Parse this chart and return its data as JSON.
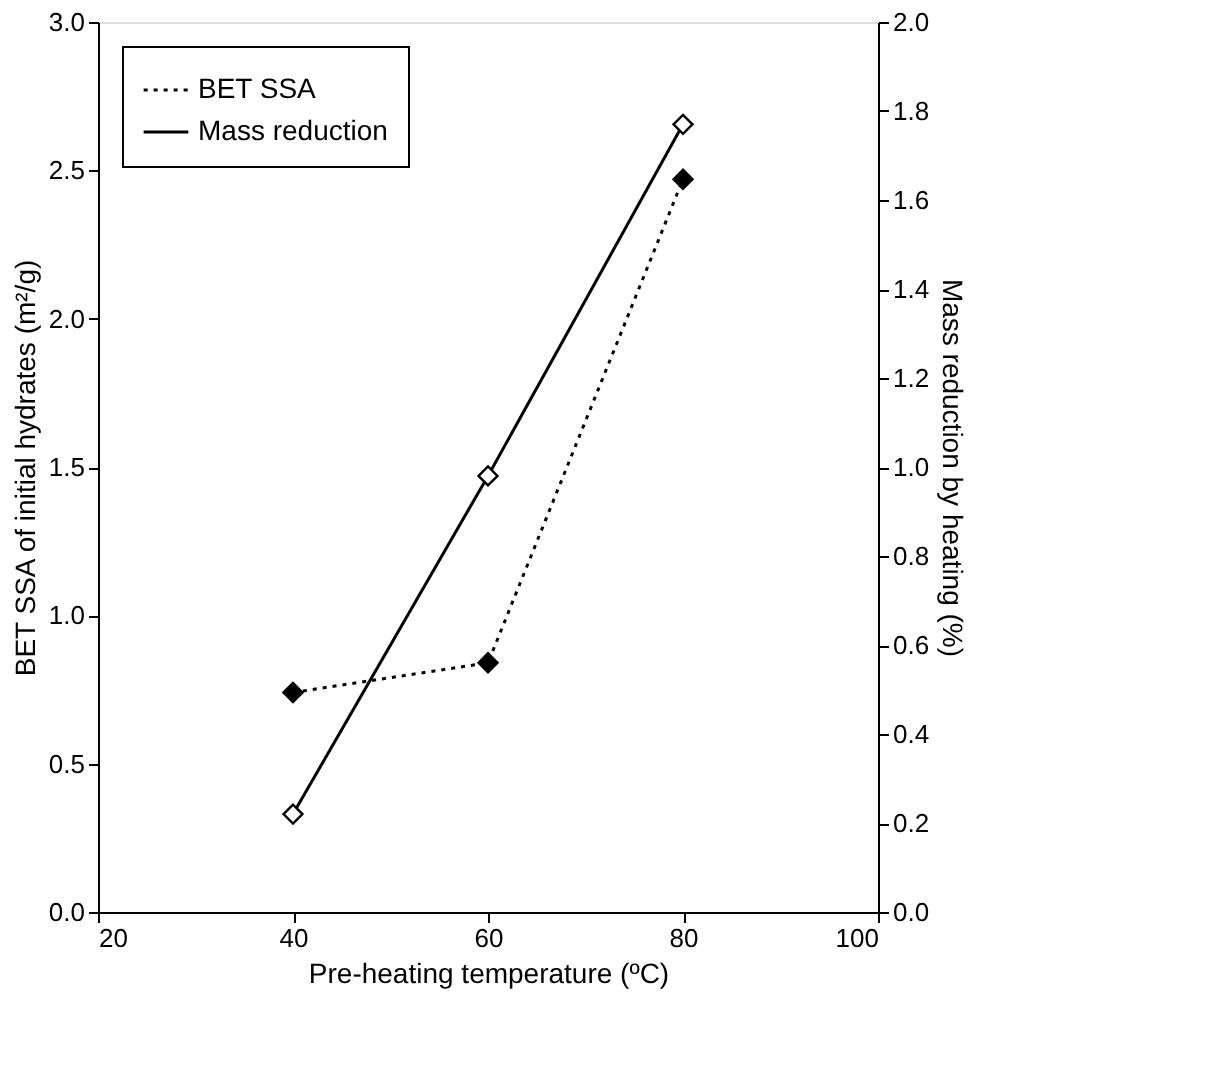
{
  "chart_data": {
    "type": "line",
    "xlabel": "Pre-heating temperature (ºC)",
    "ylabel": "BET SSA of initial hydrates (m²/g)",
    "y2label": "Mass reduction by heating  (%)",
    "x": [
      40,
      60,
      80
    ],
    "series": [
      {
        "name": "BET SSA",
        "color": "#000000",
        "values": [
          0.74,
          0.84,
          2.47
        ],
        "line_style": "dotted",
        "marker": "diamond"
      },
      {
        "name": "Mass reduction",
        "color": "#000000",
        "values": [
          0.22,
          0.98,
          1.77
        ],
        "line_style": "solid",
        "marker": "diamond",
        "axis": "y2"
      }
    ],
    "xlim": [
      20,
      100
    ],
    "xticks": [
      20,
      40,
      60,
      80,
      100
    ],
    "ylim": [
      0,
      3
    ],
    "yticks": [
      {
        "value": 0,
        "label": "0.0"
      },
      0.5,
      {
        "value": 1,
        "label": "1.0"
      },
      1.5,
      {
        "value": 2,
        "label": "2.0"
      },
      2.5,
      {
        "value": 3,
        "label": "3.0"
      }
    ],
    "y2lim": [
      0,
      2
    ],
    "y2ticks": [
      {
        "value": 0,
        "label": "0.0"
      },
      0.2,
      0.4,
      0.6,
      0.8,
      {
        "value": 1,
        "label": "1.0"
      },
      1.2,
      1.4,
      1.6,
      1.8,
      {
        "value": 2,
        "label": "2.0"
      }
    ],
    "grid": false,
    "legend": "top left"
  }
}
